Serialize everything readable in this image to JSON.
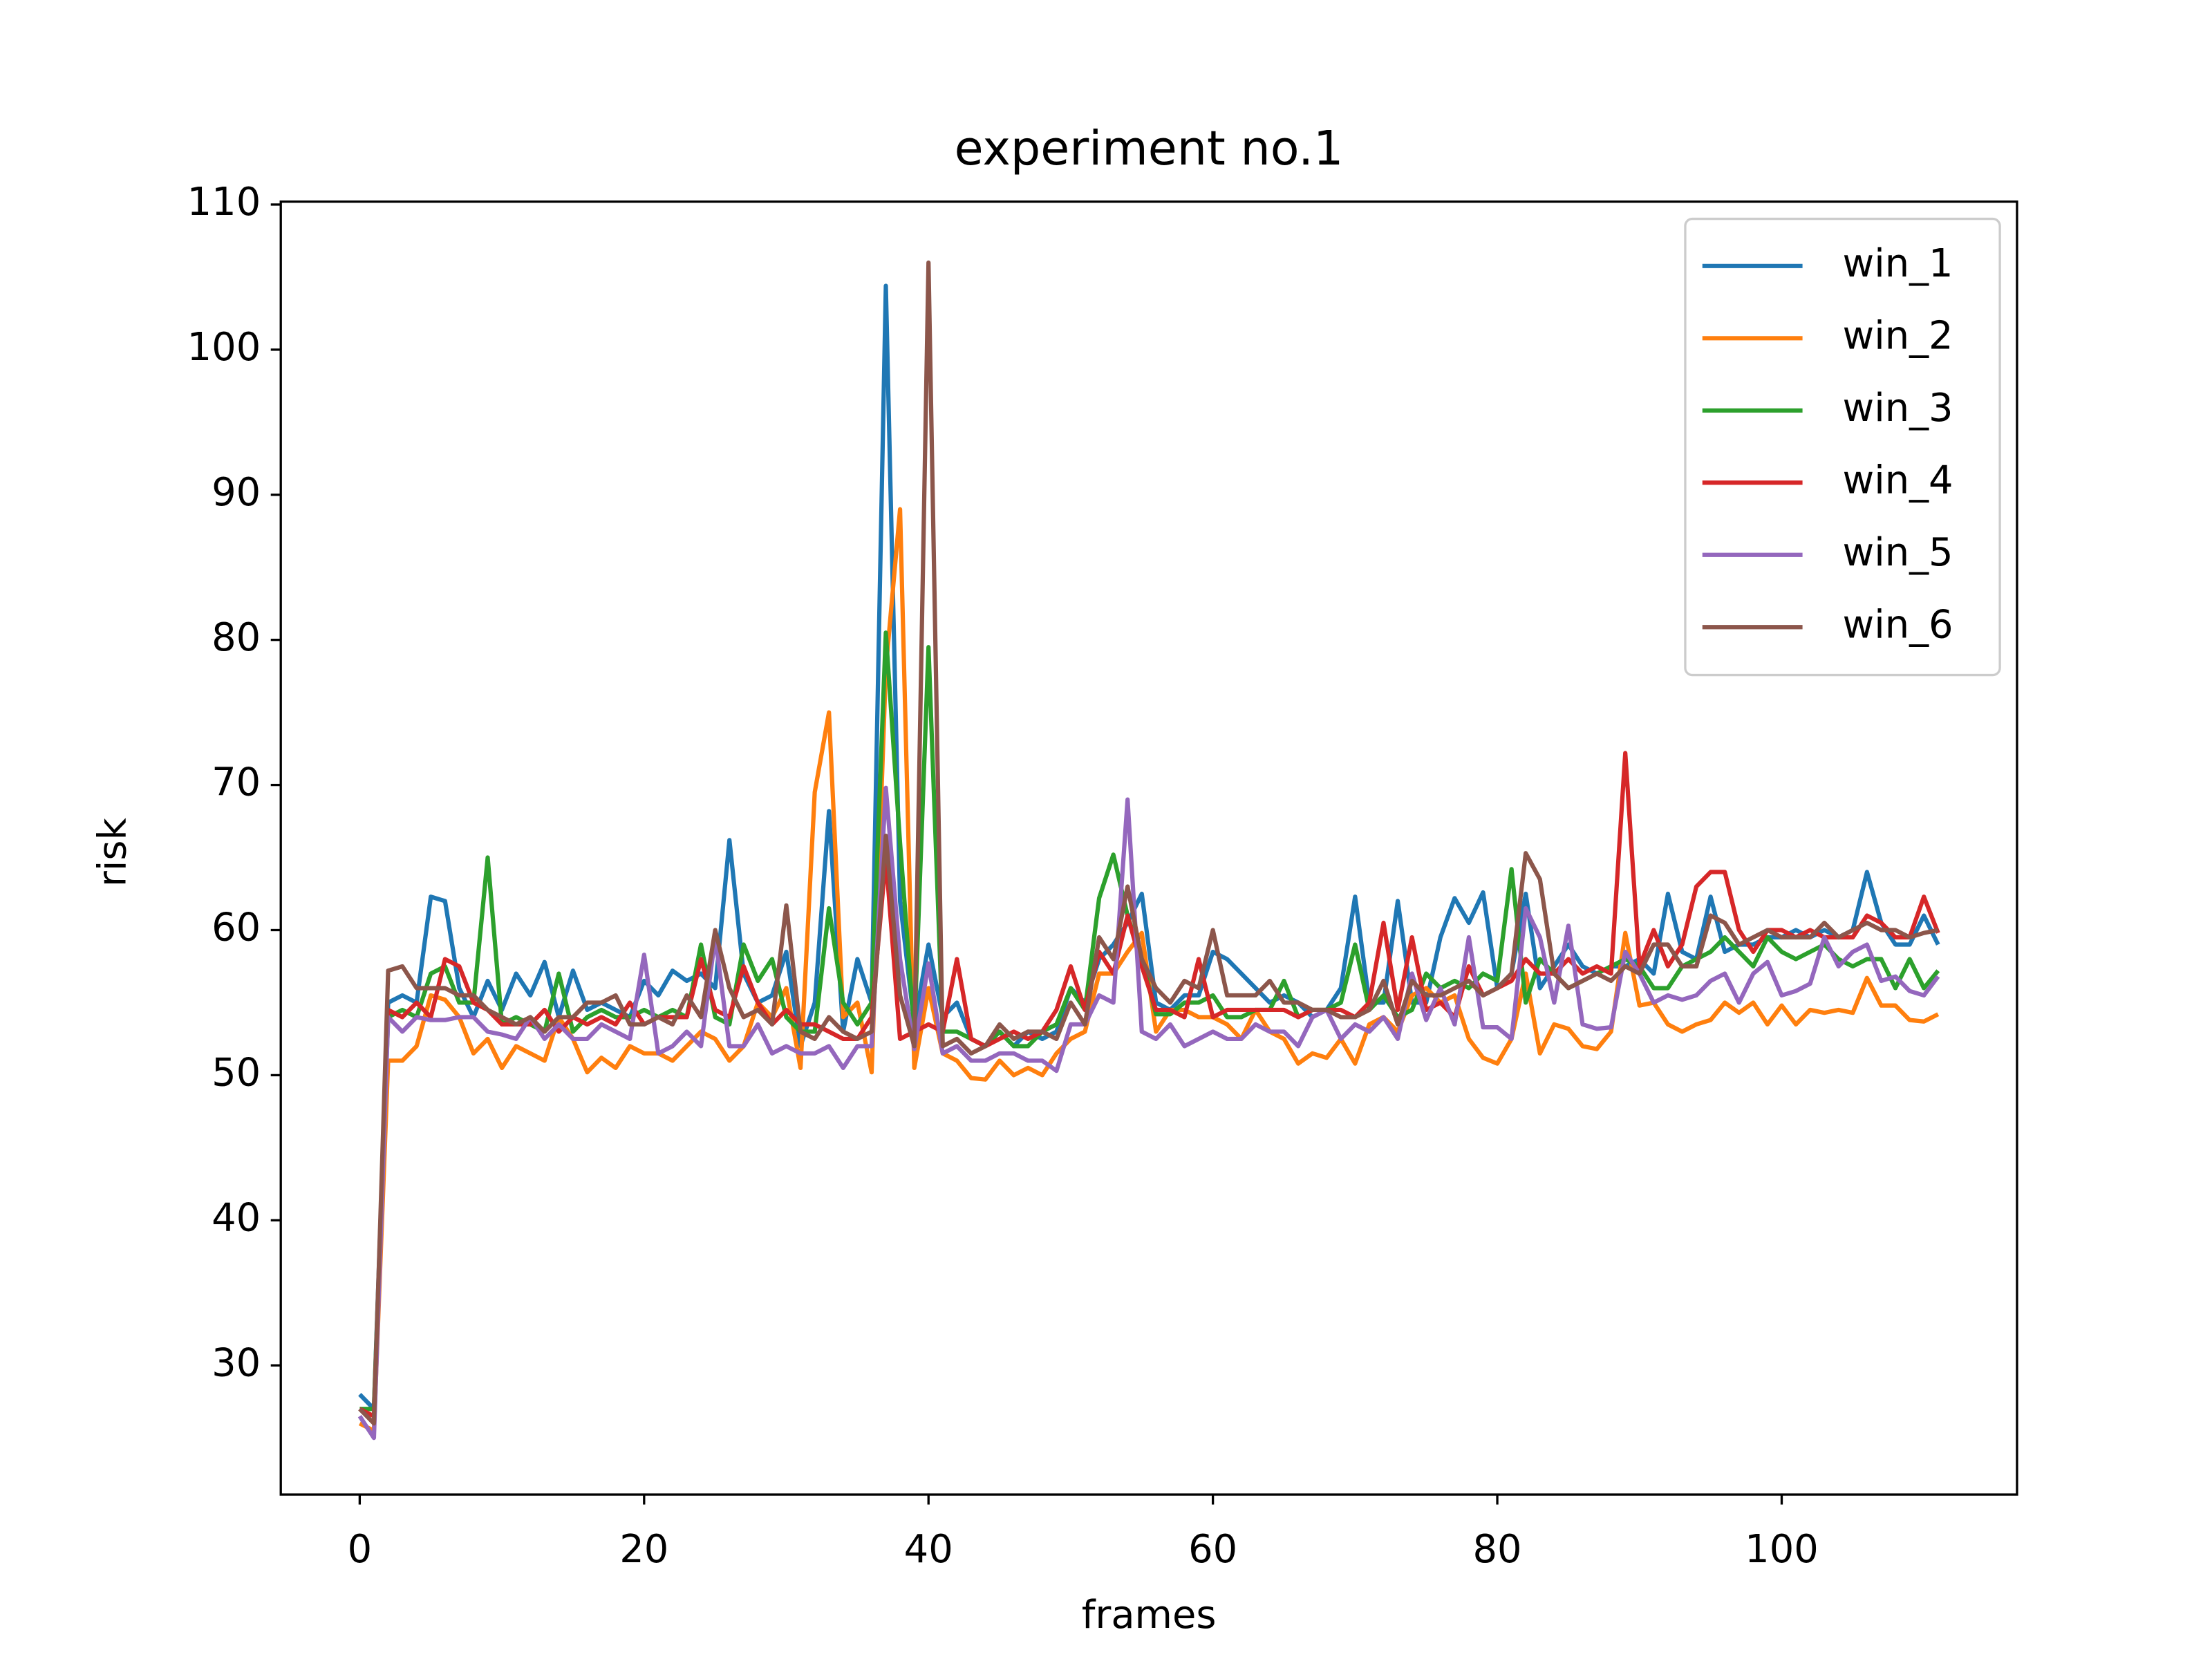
{
  "chart_data": {
    "type": "line",
    "title": "experiment no.1",
    "xlabel": "frames",
    "ylabel": "risk",
    "x": [
      0,
      1,
      2,
      3,
      4,
      5,
      6,
      7,
      8,
      9,
      10,
      11,
      12,
      13,
      14,
      15,
      16,
      17,
      18,
      19,
      20,
      21,
      22,
      23,
      24,
      25,
      26,
      27,
      28,
      29,
      30,
      31,
      32,
      33,
      34,
      35,
      36,
      37,
      38,
      39,
      40,
      41,
      42,
      43,
      44,
      45,
      46,
      47,
      48,
      49,
      50,
      51,
      52,
      53,
      54,
      55,
      56,
      57,
      58,
      59,
      60,
      61,
      62,
      63,
      64,
      65,
      66,
      67,
      68,
      69,
      70,
      71,
      72,
      73,
      74,
      75,
      76,
      77,
      78,
      79,
      80,
      81,
      82,
      83,
      84,
      85,
      86,
      87,
      88,
      89,
      90,
      91,
      92,
      93,
      94,
      95,
      96,
      97,
      98,
      99,
      100,
      101,
      102,
      103,
      104,
      105,
      106,
      107,
      108,
      109,
      110,
      111
    ],
    "series": [
      {
        "name": "win_1",
        "color": "#1f77b4",
        "values": [
          28,
          27,
          55,
          55.5,
          55,
          62.3,
          62,
          56,
          54,
          56.5,
          54.5,
          57,
          55.5,
          57.8,
          54,
          57.2,
          54.5,
          55,
          54.5,
          54,
          56.5,
          55.5,
          57.2,
          56.5,
          57,
          56,
          66.2,
          57,
          55,
          55.5,
          58.5,
          52,
          55,
          68.2,
          53,
          58,
          55,
          104.4,
          62,
          53.5,
          59,
          54,
          55,
          52.5,
          52,
          53,
          52,
          53,
          52.5,
          53,
          56,
          55,
          58,
          59,
          60.5,
          62.5,
          55,
          54.5,
          55.5,
          55.5,
          58.5,
          58,
          57,
          56,
          55,
          55.5,
          55,
          54,
          54.5,
          56,
          62.3,
          55,
          55,
          62,
          55,
          55,
          59.5,
          62.2,
          60.5,
          62.6,
          56,
          57,
          62.5,
          56,
          57.5,
          59,
          57.5,
          57,
          57.5,
          57.5,
          58,
          57,
          62.5,
          58.5,
          58,
          62.3,
          58.5,
          59,
          59,
          59.5,
          59.5,
          60,
          59.5,
          60,
          59.5,
          60,
          64,
          60.5,
          59,
          59,
          61,
          59
        ]
      },
      {
        "name": "win_2",
        "color": "#ff7f0e",
        "values": [
          26,
          25.5,
          51,
          51,
          52,
          55.5,
          55.2,
          54,
          51.5,
          52.5,
          50.5,
          52,
          51.5,
          51,
          54,
          52.5,
          50.2,
          51.2,
          50.5,
          52,
          51.5,
          51.5,
          51,
          52,
          53,
          52.5,
          51,
          52,
          55,
          54,
          56,
          50.5,
          69.5,
          75,
          54,
          55,
          50.2,
          78,
          89,
          50.5,
          56,
          51.5,
          51,
          49.8,
          49.7,
          51,
          50,
          50.5,
          50,
          51.5,
          52.5,
          53,
          57,
          57,
          58.5,
          59.8,
          53,
          54.5,
          54.5,
          54,
          54,
          53.5,
          52.5,
          54.5,
          53,
          52.5,
          50.8,
          51.5,
          51.2,
          52.5,
          50.8,
          53.5,
          54,
          53,
          55.5,
          56,
          55,
          55.5,
          52.5,
          51.2,
          50.8,
          52.5,
          57,
          51.5,
          53.5,
          53.2,
          52,
          51.8,
          53,
          59.8,
          54.8,
          55,
          53.5,
          53,
          53.5,
          53.8,
          55,
          54.3,
          55,
          53.5,
          54.8,
          53.5,
          54.5,
          54.3,
          54.5,
          54.3,
          56.7,
          54.8,
          54.8,
          53.8,
          53.7,
          54.2
        ]
      },
      {
        "name": "win_3",
        "color": "#2ca02c",
        "values": [
          27,
          27,
          54,
          54.5,
          54,
          57,
          57.5,
          55,
          55,
          65,
          53.5,
          54,
          53.5,
          53,
          57,
          53,
          54,
          54.5,
          54,
          54,
          54.5,
          54,
          54.5,
          54,
          59,
          54,
          53.5,
          59,
          56.5,
          58,
          54,
          53,
          53,
          61.5,
          55,
          53.5,
          55,
          80.5,
          66,
          53,
          79.5,
          53,
          53,
          52.5,
          52,
          53,
          52,
          52,
          53,
          53.5,
          56,
          54.5,
          62.2,
          65.2,
          61,
          58,
          54.2,
          54.2,
          55,
          55,
          55.5,
          54,
          54,
          54.5,
          54.5,
          56.5,
          54,
          54.5,
          54.5,
          55,
          59,
          54.5,
          55.5,
          54,
          54.5,
          57,
          56,
          56.5,
          56,
          57,
          56.5,
          64.2,
          55,
          58,
          57,
          56,
          56.5,
          57,
          57.5,
          58,
          57.5,
          56,
          56,
          57.5,
          58,
          58.5,
          59.5,
          58.5,
          57.5,
          59.5,
          58.5,
          58,
          58.5,
          59,
          58,
          57.5,
          58,
          58,
          56,
          58,
          56,
          57.2
        ]
      },
      {
        "name": "win_4",
        "color": "#d62728",
        "values": [
          27,
          26.5,
          54.5,
          54,
          55,
          54,
          58,
          57.5,
          55,
          54.5,
          53.5,
          53.5,
          53.5,
          54.5,
          53,
          54,
          53.5,
          54,
          53.5,
          55,
          53.5,
          54,
          54,
          54,
          58,
          54.5,
          54,
          57.5,
          55,
          53.5,
          54.5,
          53.5,
          53.5,
          53,
          52.5,
          52.5,
          54,
          65,
          52.5,
          53,
          53.5,
          53,
          58,
          52.5,
          52,
          52.5,
          53,
          52.5,
          53,
          54.5,
          57.5,
          54.5,
          58.5,
          57,
          61,
          57.5,
          54.5,
          54.5,
          54,
          58,
          54,
          54.5,
          54.5,
          54.5,
          54.5,
          54.5,
          54,
          54.5,
          54.5,
          54.5,
          54,
          55,
          60.5,
          54.5,
          59.5,
          54.5,
          55,
          54,
          57.5,
          55.5,
          56,
          56.5,
          58,
          57,
          57,
          58,
          57,
          57.5,
          57,
          72.2,
          57.5,
          60,
          57.5,
          59,
          63,
          64,
          64,
          60,
          58.5,
          60,
          60,
          59.5,
          60,
          59.5,
          59.5,
          59.5,
          61,
          60.5,
          59.5,
          59.5,
          62.3,
          59.8
        ]
      },
      {
        "name": "win_5",
        "color": "#9467bd",
        "values": [
          26.5,
          25,
          54,
          53,
          54,
          53.8,
          53.8,
          54,
          54,
          53,
          52.8,
          52.5,
          54,
          52.5,
          53.5,
          52.5,
          52.5,
          53.5,
          53,
          52.5,
          58.3,
          51.5,
          52,
          53,
          52,
          59.5,
          52,
          52,
          53.5,
          51.5,
          52,
          51.5,
          51.5,
          52,
          50.5,
          52,
          52,
          69.8,
          58,
          51.8,
          57.7,
          51.5,
          52,
          51,
          51,
          51.5,
          51.5,
          51,
          51,
          50.3,
          53.5,
          53.5,
          55.5,
          55,
          69,
          53,
          52.5,
          53.5,
          52,
          52.5,
          53,
          52.5,
          52.5,
          53.5,
          53,
          53,
          52,
          54,
          54.5,
          52.5,
          53.5,
          53,
          54,
          52.5,
          57,
          53.8,
          56,
          53.5,
          59.5,
          53.3,
          53.3,
          52.5,
          61.5,
          59.5,
          55,
          60.3,
          53.5,
          53.2,
          53.3,
          58.5,
          57,
          55,
          55.5,
          55.2,
          55.5,
          56.5,
          57,
          55,
          57,
          57.8,
          55.5,
          55.8,
          56.3,
          59.5,
          57.5,
          58.5,
          59,
          56.5,
          56.8,
          55.8,
          55.5,
          56.8
        ]
      },
      {
        "name": "win_6",
        "color": "#8c564b",
        "values": [
          27,
          26,
          57.2,
          57.5,
          56,
          56,
          56,
          55.5,
          55.5,
          54.5,
          54,
          53.5,
          54,
          53,
          54,
          54,
          55,
          55,
          55.5,
          53.5,
          53.5,
          54,
          53.5,
          55.5,
          54,
          60,
          56,
          54,
          54.5,
          53.5,
          61.7,
          53,
          52.5,
          54,
          53,
          52.5,
          53,
          66.5,
          55.5,
          52,
          106,
          52,
          52.5,
          51.5,
          52,
          53.5,
          52.5,
          53,
          53,
          52.5,
          55,
          53.5,
          59.5,
          58,
          63,
          58,
          56,
          55,
          56.5,
          56,
          60,
          55.5,
          55.5,
          55.5,
          56.5,
          55,
          55,
          54.5,
          54.5,
          54,
          54,
          54.5,
          56.5,
          53.5,
          56.5,
          55.5,
          55.5,
          56,
          56.5,
          55.5,
          56,
          57,
          65.3,
          63.5,
          57,
          56,
          56.5,
          57,
          56.5,
          57.5,
          57,
          59,
          59,
          57.5,
          57.5,
          61,
          60.5,
          59,
          59.5,
          60,
          59.5,
          59.5,
          59.5,
          60.5,
          59.5,
          60,
          60.5,
          60,
          60,
          59.5,
          59.8,
          60
        ]
      }
    ],
    "xlim": [
      -5.55,
      116.55
    ],
    "ylim": [
      21.1,
      110.2
    ],
    "xticks": [
      0,
      20,
      40,
      60,
      80,
      100
    ],
    "yticks": [
      30,
      40,
      50,
      60,
      70,
      80,
      90,
      100,
      110
    ],
    "legend": "upper right"
  }
}
